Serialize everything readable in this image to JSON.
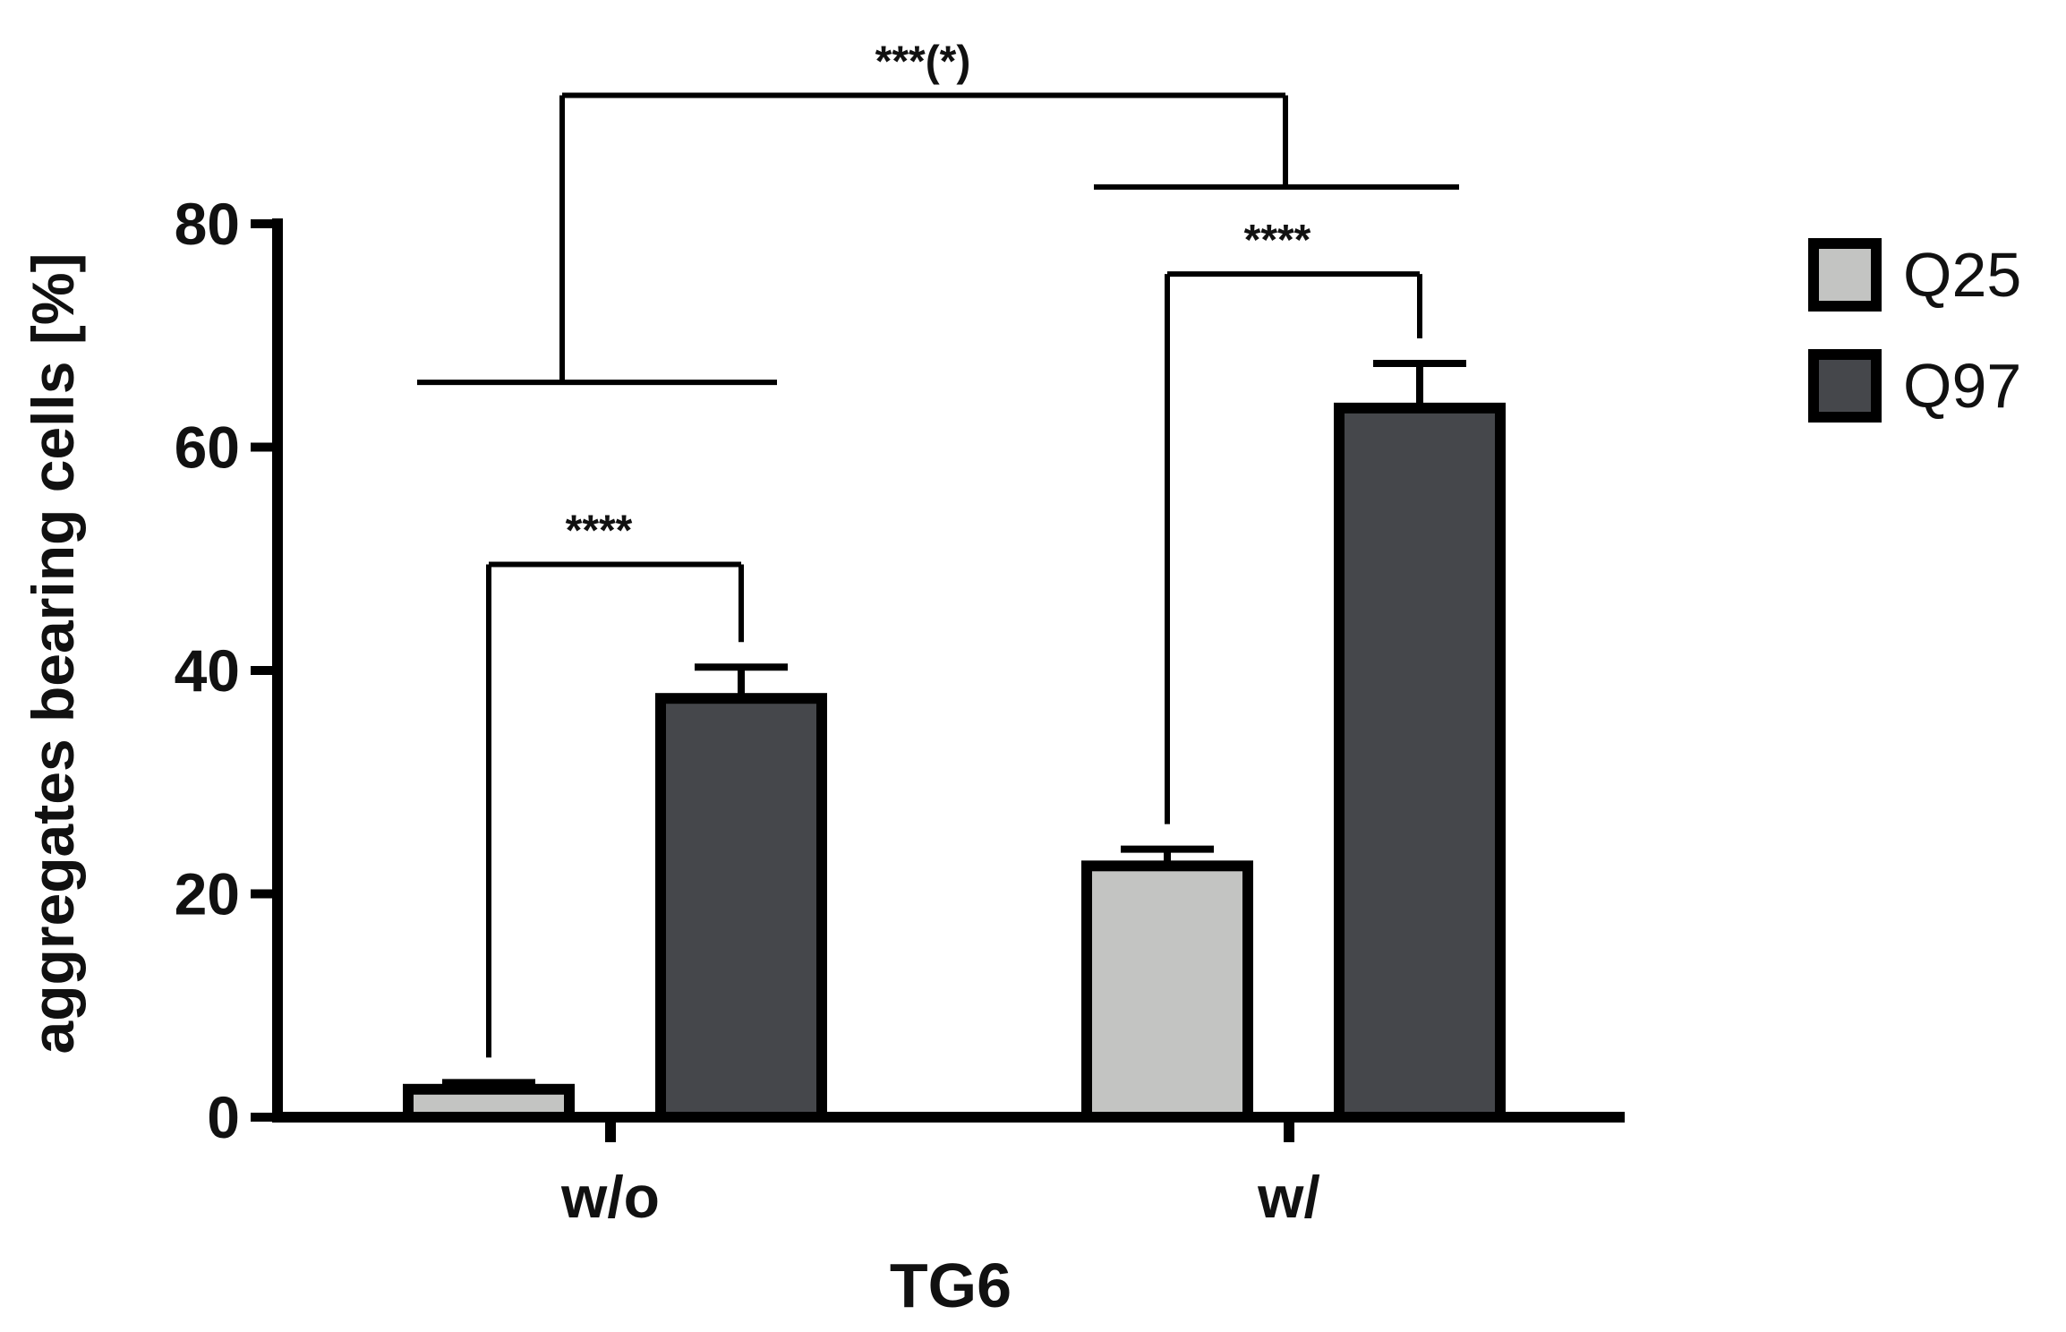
{
  "chart_data": {
    "type": "bar",
    "categories": [
      "w/o",
      "w/"
    ],
    "xlabel": "TG6",
    "ylabel": "aggregates bearing cells [%]",
    "ylim": [
      0,
      80
    ],
    "yticks": [
      "0",
      "20",
      "40",
      "60",
      "80"
    ],
    "series": [
      {
        "name": "Q25",
        "values": [
          2.5,
          22.5
        ],
        "errors": [
          0.6,
          1.5
        ],
        "color": "#c3c4c2"
      },
      {
        "name": "Q97",
        "values": [
          37.5,
          63.5
        ],
        "errors": [
          2.8,
          4.0
        ],
        "color": "#45474b"
      }
    ],
    "legend": {
      "placement": "top-right"
    },
    "grid": false,
    "annotations": [
      {
        "label": "****",
        "group": "w/o",
        "type": "within-group"
      },
      {
        "label": "****",
        "group": "w/",
        "type": "within-group"
      },
      {
        "label": "***(*)",
        "type": "between-groups"
      }
    ]
  }
}
